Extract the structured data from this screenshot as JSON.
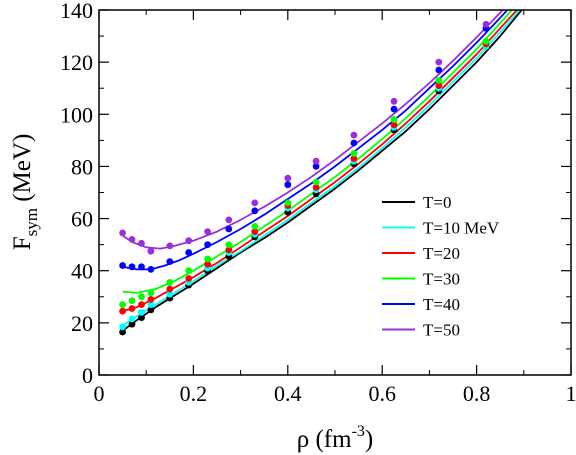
{
  "chart_data": {
    "type": "line",
    "title": "",
    "xlabel": {
      "main": "ρ (fm",
      "sup": "-3",
      "close": ")"
    },
    "ylabel": {
      "main": "F",
      "sub": "sym",
      "rest": " (MeV)"
    },
    "xlim": [
      0,
      1
    ],
    "ylim": [
      0,
      140
    ],
    "xticks": [
      0,
      0.2,
      0.4,
      0.6,
      0.8,
      1
    ],
    "xtick_labels": [
      "0",
      "0.2",
      "0.4",
      "0.6",
      "0.8",
      "1"
    ],
    "yticks": [
      0,
      20,
      40,
      60,
      80,
      100,
      120,
      140
    ],
    "ytick_labels": [
      "0",
      "20",
      "40",
      "60",
      "80",
      "100",
      "120",
      "140"
    ],
    "grid": false,
    "legend_position": "right",
    "series": [
      {
        "name": "T=0",
        "color": "#000000",
        "line": [
          [
            0.05,
            17
          ],
          [
            0.08,
            21
          ],
          [
            0.12,
            26
          ],
          [
            0.16,
            30.5
          ],
          [
            0.2,
            35
          ],
          [
            0.25,
            41
          ],
          [
            0.3,
            47
          ],
          [
            0.35,
            52.5
          ],
          [
            0.4,
            58.5
          ],
          [
            0.45,
            65
          ],
          [
            0.5,
            71.5
          ],
          [
            0.55,
            78.5
          ],
          [
            0.6,
            86
          ],
          [
            0.65,
            93.5
          ],
          [
            0.7,
            102
          ],
          [
            0.75,
            111
          ],
          [
            0.8,
            120
          ],
          [
            0.85,
            130
          ],
          [
            0.9,
            141
          ]
        ],
        "points": [
          [
            0.05,
            16.5
          ],
          [
            0.07,
            19.5
          ],
          [
            0.09,
            22
          ],
          [
            0.11,
            25
          ],
          [
            0.15,
            29.5
          ],
          [
            0.19,
            34.5
          ],
          [
            0.23,
            40
          ],
          [
            0.275,
            45.5
          ],
          [
            0.33,
            53
          ],
          [
            0.4,
            62.5
          ],
          [
            0.46,
            69.5
          ],
          [
            0.54,
            81
          ],
          [
            0.625,
            94
          ],
          [
            0.72,
            109
          ],
          [
            0.82,
            126
          ]
        ]
      },
      {
        "name": "T=10 MeV",
        "color": "#00ffff",
        "line": [
          [
            0.05,
            19
          ],
          [
            0.08,
            22.5
          ],
          [
            0.12,
            27
          ],
          [
            0.16,
            31.5
          ],
          [
            0.2,
            36
          ],
          [
            0.25,
            42
          ],
          [
            0.3,
            47.5
          ],
          [
            0.35,
            53.5
          ],
          [
            0.4,
            59.5
          ],
          [
            0.45,
            66
          ],
          [
            0.5,
            72.5
          ],
          [
            0.55,
            79.5
          ],
          [
            0.6,
            87
          ],
          [
            0.65,
            95
          ],
          [
            0.7,
            103.5
          ],
          [
            0.75,
            112.5
          ],
          [
            0.8,
            121.5
          ],
          [
            0.85,
            131.5
          ],
          [
            0.9,
            142
          ]
        ],
        "points": [
          [
            0.05,
            18.5
          ],
          [
            0.07,
            21.5
          ],
          [
            0.09,
            24
          ],
          [
            0.11,
            27
          ],
          [
            0.15,
            31
          ],
          [
            0.19,
            35.5
          ],
          [
            0.23,
            41
          ],
          [
            0.275,
            47
          ],
          [
            0.33,
            54
          ],
          [
            0.4,
            64
          ],
          [
            0.46,
            71
          ],
          [
            0.54,
            82
          ],
          [
            0.625,
            95
          ],
          [
            0.72,
            110
          ],
          [
            0.82,
            126
          ]
        ]
      },
      {
        "name": "T=20",
        "color": "#ff0000",
        "line": [
          [
            0.05,
            24.5
          ],
          [
            0.08,
            26
          ],
          [
            0.12,
            29.5
          ],
          [
            0.16,
            33.5
          ],
          [
            0.2,
            37.5
          ],
          [
            0.25,
            43
          ],
          [
            0.3,
            49
          ],
          [
            0.35,
            55
          ],
          [
            0.4,
            61
          ],
          [
            0.45,
            67.5
          ],
          [
            0.5,
            74
          ],
          [
            0.55,
            81
          ],
          [
            0.6,
            88.5
          ],
          [
            0.65,
            96.5
          ],
          [
            0.7,
            105
          ],
          [
            0.75,
            114
          ],
          [
            0.8,
            123
          ],
          [
            0.85,
            133
          ],
          [
            0.9,
            143
          ]
        ],
        "points": [
          [
            0.05,
            24.5
          ],
          [
            0.07,
            25.5
          ],
          [
            0.09,
            27
          ],
          [
            0.11,
            29
          ],
          [
            0.15,
            33
          ],
          [
            0.19,
            37
          ],
          [
            0.23,
            42.5
          ],
          [
            0.275,
            48
          ],
          [
            0.33,
            55
          ],
          [
            0.4,
            65
          ],
          [
            0.46,
            72
          ],
          [
            0.54,
            83
          ],
          [
            0.625,
            96
          ],
          [
            0.72,
            111
          ],
          [
            0.82,
            127
          ]
        ]
      },
      {
        "name": "T=30",
        "color": "#00ff00",
        "line": [
          [
            0.05,
            32
          ],
          [
            0.08,
            31.5
          ],
          [
            0.12,
            33
          ],
          [
            0.16,
            36
          ],
          [
            0.2,
            40
          ],
          [
            0.25,
            45.5
          ],
          [
            0.3,
            51
          ],
          [
            0.35,
            57
          ],
          [
            0.4,
            63
          ],
          [
            0.45,
            69.5
          ],
          [
            0.5,
            76
          ],
          [
            0.55,
            83
          ],
          [
            0.6,
            90.5
          ],
          [
            0.65,
            98.5
          ],
          [
            0.7,
            107
          ],
          [
            0.75,
            116
          ],
          [
            0.8,
            125
          ],
          [
            0.85,
            135
          ],
          [
            0.9,
            145
          ]
        ],
        "points": [
          [
            0.05,
            27
          ],
          [
            0.07,
            28.5
          ],
          [
            0.09,
            30
          ],
          [
            0.11,
            31.5
          ],
          [
            0.15,
            35.5
          ],
          [
            0.19,
            40
          ],
          [
            0.23,
            44.5
          ],
          [
            0.275,
            50
          ],
          [
            0.33,
            57
          ],
          [
            0.4,
            66
          ],
          [
            0.46,
            74
          ],
          [
            0.54,
            85
          ],
          [
            0.625,
            98
          ],
          [
            0.72,
            113
          ],
          [
            0.82,
            128
          ]
        ]
      },
      {
        "name": "T=40",
        "color": "#0000ff",
        "line": [
          [
            0.05,
            41.5
          ],
          [
            0.08,
            40.5
          ],
          [
            0.11,
            40.5
          ],
          [
            0.14,
            42
          ],
          [
            0.17,
            44
          ],
          [
            0.2,
            46.5
          ],
          [
            0.25,
            51
          ],
          [
            0.3,
            56
          ],
          [
            0.35,
            61.5
          ],
          [
            0.4,
            67.5
          ],
          [
            0.45,
            73.5
          ],
          [
            0.5,
            80
          ],
          [
            0.55,
            87
          ],
          [
            0.6,
            94
          ],
          [
            0.65,
            101.5
          ],
          [
            0.7,
            110
          ],
          [
            0.75,
            118.5
          ],
          [
            0.8,
            127.5
          ],
          [
            0.85,
            137
          ],
          [
            0.88,
            143
          ]
        ],
        "points": [
          [
            0.05,
            42
          ],
          [
            0.07,
            41.5
          ],
          [
            0.09,
            41.5
          ],
          [
            0.11,
            40.5
          ],
          [
            0.15,
            43.5
          ],
          [
            0.19,
            47
          ],
          [
            0.23,
            50
          ],
          [
            0.275,
            56
          ],
          [
            0.33,
            63
          ],
          [
            0.4,
            73
          ],
          [
            0.46,
            80
          ],
          [
            0.54,
            89
          ],
          [
            0.625,
            102
          ],
          [
            0.72,
            117
          ],
          [
            0.82,
            133
          ]
        ]
      },
      {
        "name": "T=50",
        "color": "#9b30d9",
        "line": [
          [
            0.05,
            53.5
          ],
          [
            0.07,
            51
          ],
          [
            0.1,
            49
          ],
          [
            0.13,
            48.5
          ],
          [
            0.16,
            49.5
          ],
          [
            0.2,
            51.5
          ],
          [
            0.25,
            55
          ],
          [
            0.3,
            59.5
          ],
          [
            0.35,
            64.5
          ],
          [
            0.4,
            70
          ],
          [
            0.45,
            76
          ],
          [
            0.5,
            82.5
          ],
          [
            0.55,
            89.5
          ],
          [
            0.6,
            96.5
          ],
          [
            0.65,
            104
          ],
          [
            0.7,
            112
          ],
          [
            0.75,
            120.5
          ],
          [
            0.8,
            129.5
          ],
          [
            0.85,
            139
          ],
          [
            0.87,
            143
          ]
        ],
        "points": [
          [
            0.05,
            54.5
          ],
          [
            0.07,
            52
          ],
          [
            0.09,
            50.5
          ],
          [
            0.11,
            47.5
          ],
          [
            0.15,
            49.5
          ],
          [
            0.19,
            51.5
          ],
          [
            0.23,
            55
          ],
          [
            0.275,
            59.5
          ],
          [
            0.33,
            66
          ],
          [
            0.4,
            75.5
          ],
          [
            0.46,
            82
          ],
          [
            0.54,
            92
          ],
          [
            0.625,
            105
          ],
          [
            0.72,
            120
          ],
          [
            0.82,
            134.5
          ]
        ]
      }
    ]
  }
}
